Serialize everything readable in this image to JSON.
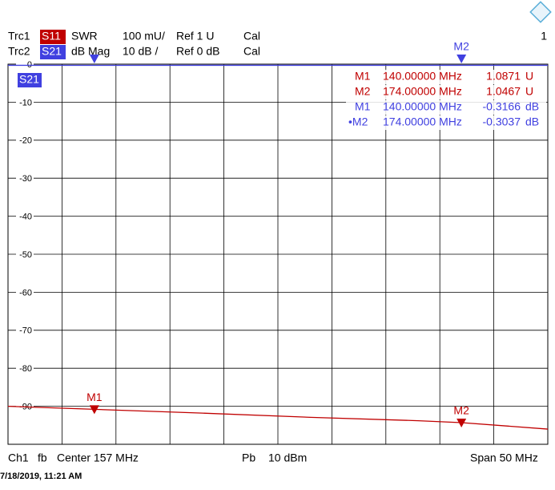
{
  "chart_data": {
    "type": "line",
    "x": [
      132,
      140,
      150,
      160,
      170,
      174,
      182
    ],
    "xlim": [
      132,
      182
    ],
    "ylim": [
      -100,
      0
    ],
    "yticks": [
      0,
      -10,
      -20,
      -30,
      -40,
      -50,
      -60,
      -70,
      -80,
      -90
    ],
    "grid": true,
    "series": [
      {
        "name": "S11",
        "color": "#c00000",
        "values": [
          -90.0,
          -90.8,
          -91.8,
          -92.9,
          -93.8,
          -94.3,
          -96.0
        ]
      },
      {
        "name": "S21",
        "color": "#4040e0",
        "values": [
          -0.3,
          -0.3166,
          -0.3,
          -0.3,
          -0.3,
          -0.3037,
          -0.3
        ]
      }
    ],
    "markers": [
      {
        "name": "M1",
        "x": 140
      },
      {
        "name": "M2",
        "x": 174
      }
    ],
    "marker_table": [
      [
        "M1",
        "140.00000 MHz",
        "1.0871",
        "U"
      ],
      [
        "M2",
        "174.00000 MHz",
        "1.0467",
        "U"
      ],
      [
        "M1",
        "140.00000 MHz",
        "-0.3166",
        "dB"
      ],
      [
        "•M2",
        "174.00000 MHz",
        "-0.3037",
        "dB"
      ]
    ]
  },
  "header": {
    "rows": [
      [
        "Trc1",
        "SWR",
        "100 mU/",
        "Ref 1 U",
        "Cal"
      ],
      [
        "Trc2",
        "dB Mag",
        "10 dB /",
        "Ref 0 dB",
        "Cal"
      ]
    ],
    "channel": "1"
  },
  "footer": {
    "items": [
      "Ch1",
      "fb",
      "Center 157 MHz",
      "Pb",
      "10 dBm",
      "Span 50 MHz"
    ],
    "timestamp": "7/18/2019, 11:21 AM"
  }
}
